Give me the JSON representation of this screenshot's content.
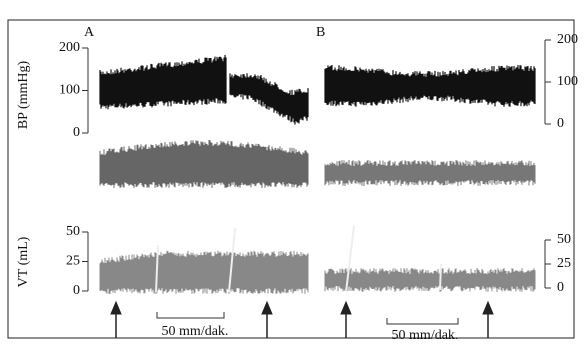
{
  "panels": [
    {
      "label": "A",
      "bp_axis": {
        "label": "BP (mmHg)",
        "ticks": [
          200,
          100,
          0
        ]
      },
      "vt_axis": {
        "label": "VT (mL)",
        "ticks": [
          50,
          25,
          0
        ]
      },
      "scale_bar": "50 mm/dak."
    },
    {
      "label": "B",
      "bp_axis": {
        "ticks": [
          200,
          100,
          0
        ]
      },
      "vt_axis": {
        "ticks": [
          50,
          25,
          0
        ]
      },
      "scale_bar": "50 mm/dak."
    }
  ]
}
